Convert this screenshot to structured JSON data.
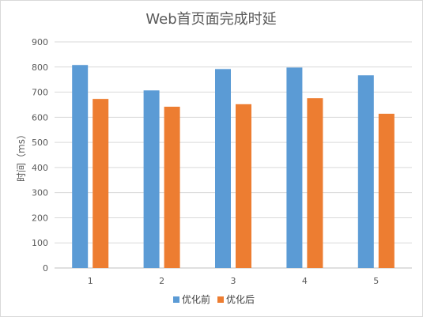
{
  "chart_data": {
    "type": "bar",
    "title": "Web首页面完成时延",
    "ylabel": "时间（ms）",
    "xlabel": "",
    "categories": [
      "1",
      "2",
      "3",
      "4",
      "5"
    ],
    "yticks": [
      "0",
      "100",
      "200",
      "300",
      "400",
      "500",
      "600",
      "700",
      "800",
      "900"
    ],
    "ylim": [
      0,
      900
    ],
    "grid": true,
    "legend_position": "bottom",
    "series": [
      {
        "name": "优化前",
        "color": "#5b9bd5",
        "values": [
          808,
          707,
          792,
          798,
          767
        ]
      },
      {
        "name": "优化后",
        "color": "#ed7d31",
        "values": [
          673,
          642,
          652,
          676,
          614
        ]
      }
    ]
  }
}
